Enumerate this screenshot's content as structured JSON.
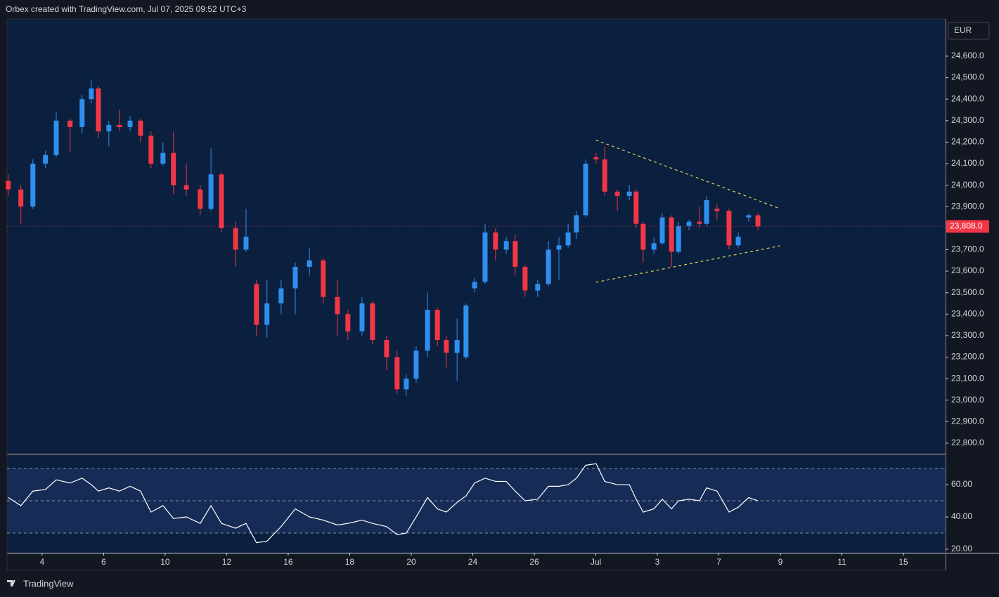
{
  "header": "Orbex created with TradingView.com, Jul 07, 2025 09:52 UTC+3",
  "footer": "TradingView",
  "chart_data": [
    {
      "type": "candlestick",
      "currency": "EUR",
      "up_color": "#2f8fef",
      "down_color": "#f23645",
      "x": [
        -1.1,
        -0.69,
        -0.3,
        0.11,
        0.46,
        0.91,
        1.3,
        1.6,
        1.83,
        2.17,
        2.51,
        2.86,
        3.2,
        3.54,
        3.93,
        4.27,
        4.69,
        5.14,
        5.49,
        5.83,
        6.29,
        6.63,
        6.97,
        7.31,
        7.77,
        8.23,
        8.69,
        9.14,
        9.6,
        9.94,
        10.4,
        10.74,
        11.2,
        11.54,
        11.84,
        12.16,
        12.53,
        12.85,
        13.14,
        13.49,
        13.78,
        14.06,
        14.4,
        14.74,
        15.09,
        15.38,
        15.7,
        16.11,
        16.46,
        16.8,
        17.1,
        17.37,
        17.67,
        18.01,
        18.29,
        18.7,
        19.09,
        19.31,
        19.54,
        19.89,
        20.16,
        20.46,
        20.69,
        21.03,
        21.37,
        21.6,
        21.94,
        22.33,
        22.63,
        22.97,
        23.27
      ],
      "open": [
        24020,
        23980,
        23900,
        24100,
        24140,
        24300,
        24270,
        24400,
        24450,
        24250,
        24280,
        24270,
        24300,
        24230,
        24100,
        24150,
        24000,
        23980,
        23890,
        24050,
        23800,
        23700,
        23540,
        23350,
        23450,
        23520,
        23620,
        23650,
        23480,
        23400,
        23320,
        23450,
        23280,
        23200,
        23050,
        23100,
        23230,
        23420,
        23280,
        23220,
        23200,
        23520,
        23550,
        23780,
        23700,
        23740,
        23620,
        23510,
        23540,
        23700,
        23720,
        23780,
        23860,
        24130,
        24120,
        23970,
        23950,
        23970,
        23820,
        23700,
        23730,
        23850,
        23690,
        23810,
        23830,
        23820,
        23890,
        23880,
        23720,
        23850,
        23860
      ],
      "high": [
        24050,
        24000,
        24120,
        24160,
        24340,
        24310,
        24420,
        24490,
        24460,
        24300,
        24350,
        24320,
        24310,
        24250,
        24200,
        24250,
        24100,
        24000,
        24170,
        24060,
        23830,
        23890,
        23560,
        23560,
        23560,
        23640,
        23710,
        23660,
        23560,
        23420,
        23480,
        23460,
        23300,
        23230,
        23120,
        23250,
        23500,
        23430,
        23300,
        23380,
        23450,
        23570,
        23820,
        23800,
        23760,
        23770,
        23630,
        23560,
        23740,
        23760,
        23820,
        23880,
        24120,
        24150,
        24180,
        23980,
        24000,
        23980,
        23830,
        23760,
        23870,
        23860,
        23830,
        23840,
        23900,
        23950,
        23910,
        23890,
        23780,
        23870,
        23870
      ],
      "low": [
        23950,
        23820,
        23890,
        24080,
        24130,
        24150,
        24240,
        24380,
        24220,
        24180,
        24250,
        24250,
        24200,
        24080,
        24090,
        23960,
        23950,
        23860,
        23880,
        23780,
        23620,
        23690,
        23300,
        23290,
        23400,
        23400,
        23580,
        23450,
        23300,
        23280,
        23300,
        23260,
        23140,
        23030,
        23020,
        23080,
        23200,
        23250,
        23150,
        23090,
        23190,
        23500,
        23540,
        23650,
        23680,
        23580,
        23480,
        23480,
        23530,
        23560,
        23710,
        23750,
        23850,
        24100,
        23950,
        23880,
        23930,
        23800,
        23640,
        23680,
        23720,
        23620,
        23680,
        23790,
        23800,
        23810,
        23840,
        23700,
        23710,
        23830,
        23790
      ],
      "close": [
        23980,
        23900,
        24100,
        24140,
        24300,
        24270,
        24400,
        24450,
        24250,
        24280,
        24270,
        24300,
        24230,
        24100,
        24150,
        24000,
        23980,
        23890,
        24050,
        23800,
        23700,
        23760,
        23350,
        23450,
        23520,
        23620,
        23650,
        23480,
        23400,
        23320,
        23450,
        23280,
        23200,
        23050,
        23100,
        23230,
        23420,
        23280,
        23220,
        23280,
        23440,
        23550,
        23780,
        23700,
        23740,
        23620,
        23510,
        23540,
        23700,
        23720,
        23780,
        23860,
        24100,
        24120,
        23970,
        23950,
        23970,
        23820,
        23700,
        23730,
        23850,
        23690,
        23810,
        23830,
        23820,
        23930,
        23880,
        23720,
        23760,
        23860,
        23808
      ],
      "last_price_label": "23,808.0",
      "trendlines": [
        {
          "color": "#e6d24a",
          "x": [
            18.0,
            24.0
          ],
          "y": [
            24210,
            23890
          ]
        },
        {
          "color": "#e6d24a",
          "x": [
            18.0,
            24.0
          ],
          "y": [
            23548,
            23718
          ]
        }
      ],
      "xlim": [
        -1.14,
        29.37
      ],
      "xticks": [
        {
          "value": 0,
          "label": "4"
        },
        {
          "value": 2,
          "label": "6"
        },
        {
          "value": 4,
          "label": "10"
        },
        {
          "value": 6,
          "label": "12"
        },
        {
          "value": 8,
          "label": "16"
        },
        {
          "value": 10,
          "label": "18"
        },
        {
          "value": 12,
          "label": "20"
        },
        {
          "value": 14,
          "label": "24"
        },
        {
          "value": 16,
          "label": "26"
        },
        {
          "value": 18,
          "label": "Jul"
        },
        {
          "value": 20,
          "label": "3"
        },
        {
          "value": 22,
          "label": "7"
        },
        {
          "value": 24,
          "label": "9"
        },
        {
          "value": 26,
          "label": "11"
        },
        {
          "value": 28,
          "label": "15"
        }
      ],
      "ylim": [
        22754,
        24773
      ],
      "yticks": [
        {
          "value": 22800,
          "label": "22,800.0"
        },
        {
          "value": 22900,
          "label": "22,900.0"
        },
        {
          "value": 23000,
          "label": "23,000.0"
        },
        {
          "value": 23100,
          "label": "23,100.0"
        },
        {
          "value": 23200,
          "label": "23,200.0"
        },
        {
          "value": 23300,
          "label": "23,300.0"
        },
        {
          "value": 23400,
          "label": "23,400.0"
        },
        {
          "value": 23500,
          "label": "23,500.0"
        },
        {
          "value": 23600,
          "label": "23,600.0"
        },
        {
          "value": 23700,
          "label": "23,700.0"
        },
        {
          "value": 23800,
          "label": "23,800.0"
        },
        {
          "value": 23900,
          "label": "23,900.0"
        },
        {
          "value": 24000,
          "label": "24,000.0"
        },
        {
          "value": 24100,
          "label": "24,100.0"
        },
        {
          "value": 24200,
          "label": "24,200.0"
        },
        {
          "value": 24300,
          "label": "24,300.0"
        },
        {
          "value": 24400,
          "label": "24,400.0"
        },
        {
          "value": 24500,
          "label": "24,500.0"
        },
        {
          "value": 24600,
          "label": "24,600.0"
        }
      ]
    },
    {
      "type": "line",
      "color": "#ffffff",
      "values": [
        52,
        47,
        56,
        57,
        63,
        61,
        64,
        60,
        56,
        58,
        56,
        59,
        56,
        43,
        47,
        39,
        40,
        36,
        47,
        36,
        33,
        36,
        24,
        25,
        34,
        45,
        40,
        38,
        35,
        36,
        38,
        36,
        34,
        29,
        30,
        40,
        52,
        45,
        43,
        49,
        53,
        61,
        64,
        62,
        62,
        56,
        50,
        51,
        59,
        59,
        60,
        64,
        72,
        73,
        62,
        60,
        60,
        51,
        43,
        45,
        51,
        45,
        50,
        51,
        50,
        58,
        56,
        43,
        46,
        52,
        50
      ],
      "bands": [
        70,
        50,
        30
      ],
      "ylim": [
        17.8,
        78.3
      ],
      "yticks": [
        {
          "value": 20,
          "label": "20.00"
        },
        {
          "value": 40,
          "label": "40.00"
        },
        {
          "value": 60,
          "label": "60.00"
        }
      ]
    }
  ]
}
